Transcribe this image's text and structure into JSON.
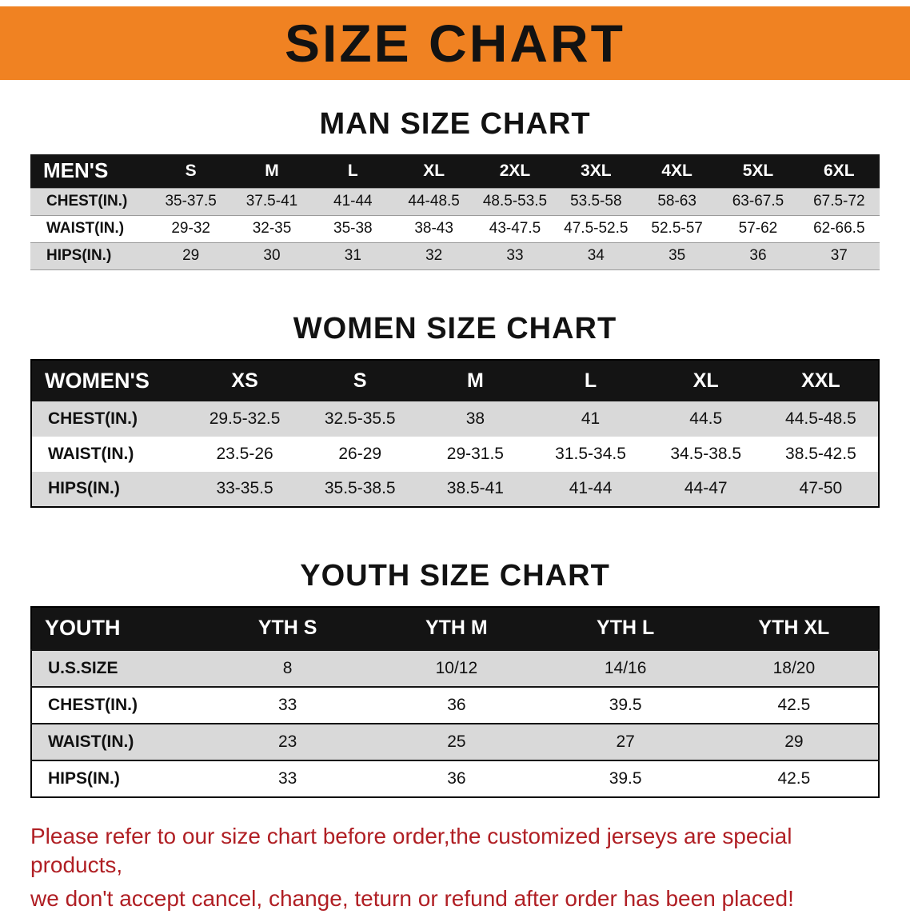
{
  "banner": {
    "title": "SIZE CHART",
    "bg_color": "#f08222",
    "text_color": "#121212"
  },
  "chart_data": [
    {
      "type": "table",
      "title": "MAN SIZE CHART",
      "header": [
        "MEN'S",
        "S",
        "M",
        "L",
        "XL",
        "2XL",
        "3XL",
        "4XL",
        "5XL",
        "6XL"
      ],
      "rows": [
        [
          "CHEST(IN.)",
          "35-37.5",
          "37.5-41",
          "41-44",
          "44-48.5",
          "48.5-53.5",
          "53.5-58",
          "58-63",
          "63-67.5",
          "67.5-72"
        ],
        [
          "WAIST(IN.)",
          "29-32",
          "32-35",
          "35-38",
          "38-43",
          "43-47.5",
          "47.5-52.5",
          "52.5-57",
          "57-62",
          "62-66.5"
        ],
        [
          "HIPS(IN.)",
          "29",
          "30",
          "31",
          "32",
          "33",
          "34",
          "35",
          "36",
          "37"
        ]
      ]
    },
    {
      "type": "table",
      "title": "WOMEN SIZE CHART",
      "header": [
        "WOMEN'S",
        "XS",
        "S",
        "M",
        "L",
        "XL",
        "XXL"
      ],
      "rows": [
        [
          "CHEST(IN.)",
          "29.5-32.5",
          "32.5-35.5",
          "38",
          "41",
          "44.5",
          "44.5-48.5"
        ],
        [
          "WAIST(IN.)",
          "23.5-26",
          "26-29",
          "29-31.5",
          "31.5-34.5",
          "34.5-38.5",
          "38.5-42.5"
        ],
        [
          "HIPS(IN.)",
          "33-35.5",
          "35.5-38.5",
          "38.5-41",
          "41-44",
          "44-47",
          "47-50"
        ]
      ]
    },
    {
      "type": "table",
      "title": "YOUTH SIZE CHART",
      "header": [
        "YOUTH",
        "YTH S",
        "YTH M",
        "YTH L",
        "YTH XL"
      ],
      "rows": [
        [
          "U.S.SIZE",
          "8",
          "10/12",
          "14/16",
          "18/20"
        ],
        [
          "CHEST(IN.)",
          "33",
          "36",
          "39.5",
          "42.5"
        ],
        [
          "WAIST(IN.)",
          "23",
          "25",
          "27",
          "29"
        ],
        [
          "HIPS(IN.)",
          "33",
          "36",
          "39.5",
          "42.5"
        ]
      ]
    }
  ],
  "footer": {
    "lines": [
      "Please refer to our size chart before order,the customized jerseys are special products,",
      "we don't accept cancel, change, teturn or refund after order has been placed!"
    ],
    "color": "#b01f24"
  }
}
